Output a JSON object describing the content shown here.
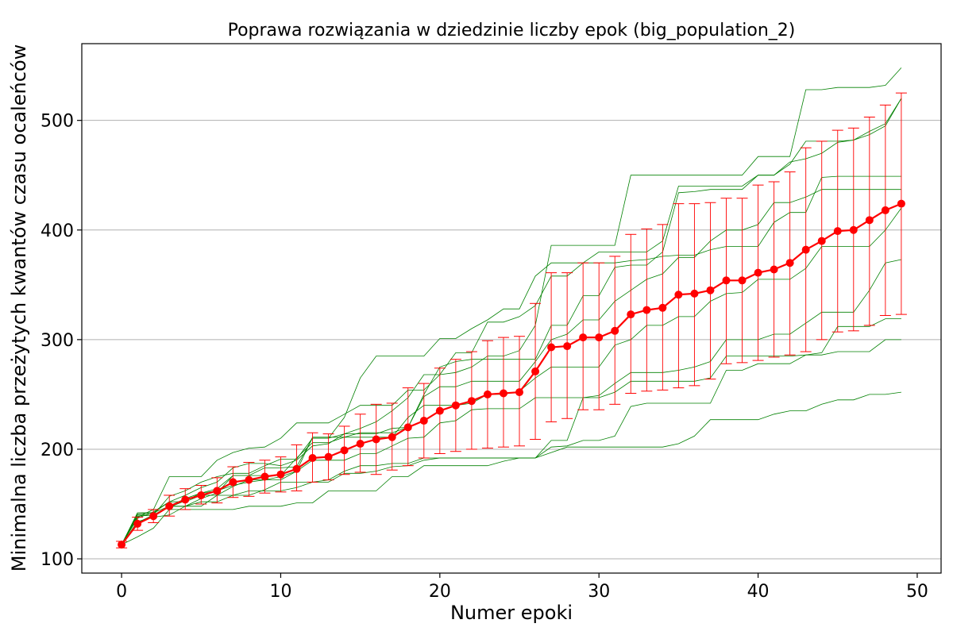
{
  "chart_data": {
    "type": "line",
    "title": "Poprawa rozwiązania w dziedzinie liczby epok (big_population_2)",
    "xlabel": "Numer epoki",
    "ylabel": "Minimalna liczba przeżytych kwantów czasu ocaleńców",
    "xlim": [
      -2.5,
      51.5
    ],
    "ylim": [
      87,
      570
    ],
    "xticks": [
      0,
      10,
      20,
      30,
      40,
      50
    ],
    "yticks": [
      100,
      200,
      300,
      400,
      500
    ],
    "grid": "horizontal",
    "colors": {
      "mean": "#ff0000",
      "error": "#ff0000",
      "runs": "#008000",
      "grid": "#b0b0b0"
    },
    "mean_series": {
      "x": [
        0,
        1,
        2,
        3,
        4,
        5,
        6,
        7,
        8,
        9,
        10,
        11,
        12,
        13,
        14,
        15,
        16,
        17,
        18,
        19,
        20,
        21,
        22,
        23,
        24,
        25,
        26,
        27,
        28,
        29,
        30,
        31,
        32,
        33,
        34,
        35,
        36,
        37,
        38,
        39,
        40,
        41,
        42,
        43,
        44,
        45,
        46,
        47,
        48,
        49
      ],
      "y": [
        113,
        132,
        139,
        148,
        154,
        158,
        162,
        170,
        172,
        175,
        177,
        182,
        192,
        193,
        199,
        205,
        209,
        211,
        220,
        226,
        235,
        240,
        244,
        250,
        251,
        252,
        271,
        293,
        294,
        302,
        302,
        308,
        323,
        327,
        329,
        341,
        342,
        345,
        354,
        354,
        361,
        364,
        370,
        382,
        390,
        399,
        400,
        409,
        418,
        424
      ],
      "err_low": [
        110,
        126,
        133,
        139,
        145,
        150,
        151,
        156,
        157,
        160,
        161,
        162,
        170,
        172,
        177,
        179,
        177,
        181,
        185,
        192,
        196,
        198,
        200,
        201,
        202,
        203,
        209,
        225,
        228,
        236,
        236,
        241,
        251,
        253,
        254,
        256,
        258,
        264,
        278,
        279,
        281,
        284,
        286,
        289,
        300,
        307,
        308,
        313,
        322,
        323
      ],
      "err_high": [
        116,
        138,
        145,
        158,
        164,
        167,
        174,
        184,
        188,
        190,
        193,
        204,
        215,
        214,
        221,
        232,
        241,
        242,
        256,
        260,
        274,
        282,
        289,
        299,
        302,
        303,
        333,
        361,
        361,
        370,
        370,
        376,
        396,
        401,
        405,
        424,
        424,
        425,
        429,
        429,
        441,
        444,
        453,
        475,
        481,
        491,
        493,
        503,
        514,
        525
      ]
    },
    "runs": [
      [
        113,
        120,
        128,
        145,
        145,
        145,
        145,
        145,
        148,
        148,
        148,
        151,
        151,
        162,
        162,
        162,
        162,
        175,
        175,
        185,
        185,
        185,
        185,
        185,
        189,
        192,
        192,
        197,
        202,
        202,
        202,
        202,
        202,
        202,
        202,
        205,
        212,
        227,
        227,
        227,
        227,
        232,
        235,
        235,
        241,
        245,
        245,
        250,
        250,
        252
      ],
      [
        113,
        139,
        140,
        148,
        148,
        148,
        158,
        158,
        158,
        163,
        170,
        170,
        170,
        170,
        178,
        178,
        180,
        184,
        185,
        190,
        192,
        192,
        192,
        192,
        192,
        192,
        192,
        202,
        203,
        208,
        208,
        212,
        239,
        242,
        242,
        242,
        242,
        242,
        272,
        272,
        278,
        278,
        278,
        286,
        286,
        289,
        289,
        289,
        300,
        300
      ],
      [
        113,
        142,
        142,
        148,
        148,
        152,
        152,
        158,
        162,
        162,
        162,
        165,
        170,
        172,
        180,
        185,
        185,
        187,
        187,
        192,
        192,
        192,
        192,
        192,
        192,
        192,
        192,
        208,
        208,
        247,
        247,
        252,
        262,
        262,
        262,
        262,
        262,
        265,
        285,
        285,
        285,
        285,
        285,
        286,
        288,
        312,
        312,
        312,
        319,
        319
      ],
      [
        113,
        140,
        140,
        148,
        155,
        160,
        162,
        167,
        170,
        172,
        175,
        180,
        190,
        190,
        190,
        196,
        196,
        203,
        210,
        211,
        224,
        226,
        236,
        237,
        237,
        237,
        247,
        247,
        247,
        247,
        249,
        260,
        270,
        270,
        270,
        272,
        275,
        280,
        300,
        300,
        300,
        305,
        305,
        315,
        325,
        325,
        325,
        345,
        370,
        373
      ],
      [
        113,
        141,
        142,
        152,
        152,
        158,
        158,
        166,
        172,
        172,
        172,
        180,
        211,
        211,
        211,
        211,
        211,
        211,
        229,
        240,
        240,
        240,
        242,
        250,
        250,
        253,
        265,
        275,
        275,
        275,
        275,
        295,
        300,
        313,
        313,
        321,
        321,
        335,
        342,
        343,
        355,
        355,
        355,
        365,
        385,
        385,
        385,
        385,
        400,
        420
      ],
      [
        113,
        133,
        140,
        147,
        153,
        160,
        164,
        176,
        176,
        176,
        176,
        192,
        206,
        206,
        211,
        215,
        215,
        215,
        220,
        248,
        257,
        257,
        262,
        262,
        262,
        262,
        280,
        300,
        305,
        318,
        318,
        335,
        345,
        355,
        360,
        375,
        375,
        390,
        400,
        400,
        405,
        425,
        425,
        430,
        437,
        437,
        437,
        437,
        437,
        437
      ],
      [
        113,
        134,
        138,
        140,
        148,
        155,
        160,
        176,
        176,
        183,
        183,
        184,
        210,
        210,
        214,
        214,
        214,
        219,
        220,
        250,
        275,
        280,
        282,
        282,
        282,
        282,
        282,
        313,
        313,
        340,
        340,
        366,
        368,
        368,
        380,
        434,
        435,
        437,
        437,
        437,
        450,
        450,
        462,
        465,
        470,
        480,
        482,
        490,
        497,
        520
      ],
      [
        113,
        138,
        145,
        175,
        175,
        175,
        190,
        197,
        201,
        202,
        210,
        224,
        224,
        224,
        232,
        240,
        240,
        240,
        254,
        254,
        268,
        288,
        288,
        316,
        316,
        321,
        331,
        358,
        358,
        370,
        380,
        380,
        380,
        380,
        390,
        440,
        440,
        440,
        440,
        440,
        450,
        450,
        460,
        481,
        481,
        481,
        482,
        487,
        495,
        520
      ],
      [
        113,
        133,
        140,
        157,
        162,
        170,
        175,
        178,
        178,
        185,
        191,
        191,
        210,
        210,
        229,
        265,
        285,
        285,
        285,
        285,
        301,
        301,
        310,
        318,
        328,
        328,
        358,
        370,
        370,
        370,
        370,
        370,
        372,
        373,
        376,
        377,
        377,
        382,
        385,
        385,
        385,
        407,
        416,
        416,
        448,
        449,
        449,
        449,
        449,
        449
      ],
      [
        113,
        137,
        143,
        152,
        158,
        165,
        170,
        183,
        187,
        187,
        185,
        190,
        203,
        205,
        214,
        219,
        225,
        235,
        247,
        268,
        268,
        270,
        275,
        285,
        285,
        290,
        313,
        386,
        386,
        386,
        386,
        386,
        450,
        450,
        450,
        450,
        450,
        450,
        450,
        450,
        467,
        467,
        467,
        528,
        528,
        530,
        530,
        530,
        532,
        548
      ]
    ]
  }
}
